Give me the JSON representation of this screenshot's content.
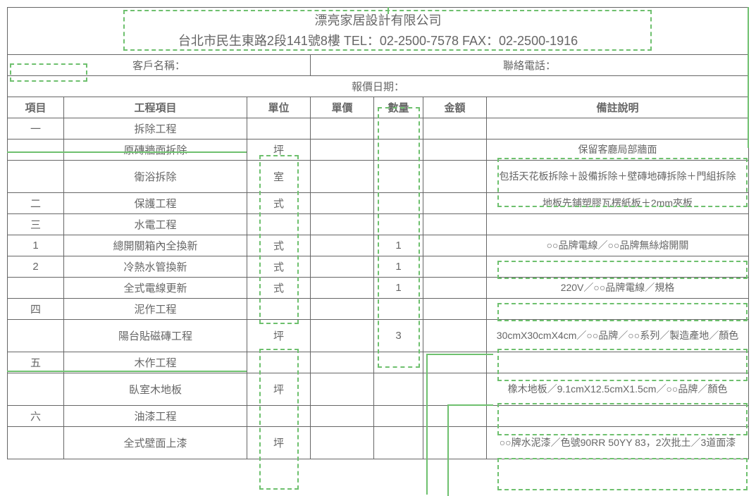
{
  "header": {
    "company": "漂亮家居設計有限公司",
    "address_line": "台北市民生東路2段141號8樓 TEL：02-2500-7578  FAX：02-2500-1916"
  },
  "info": {
    "customer_label": "客戶名稱：",
    "phone_label": "聯絡電話：",
    "quote_date_label": "報價日期："
  },
  "columns": {
    "item": "項目",
    "work": "工程項目",
    "unit": "單位",
    "unit_price": "單價",
    "qty": "數量",
    "amount": "金額",
    "remark": "備註說明"
  },
  "rows": [
    {
      "item": "一",
      "work": "拆除工程",
      "unit": "",
      "price": "",
      "qty": "",
      "amt": "",
      "remark": ""
    },
    {
      "item": "",
      "work": "原磚牆面拆除",
      "unit": "坪",
      "price": "",
      "qty": "",
      "amt": "",
      "remark": "保留客廳局部牆面"
    },
    {
      "item": "",
      "work": "衛浴拆除",
      "unit": "室",
      "price": "",
      "qty": "",
      "amt": "",
      "remark": "包括天花板拆除＋設備拆除＋壁磚地磚拆除＋門組拆除"
    },
    {
      "item": "二",
      "work": "保護工程",
      "unit": "式",
      "price": "",
      "qty": "",
      "amt": "",
      "remark": "地板先鋪塑膠瓦楞紙板＋2mm夾板"
    },
    {
      "item": "三",
      "work": "水電工程",
      "unit": "",
      "price": "",
      "qty": "",
      "amt": "",
      "remark": ""
    },
    {
      "item": "1",
      "work": "總開關箱內全換新",
      "unit": "式",
      "price": "",
      "qty": "1",
      "amt": "",
      "remark": "○○品牌電線／○○品牌無絲熔開關"
    },
    {
      "item": "2",
      "work": "冷熱水管換新",
      "unit": "式",
      "price": "",
      "qty": "1",
      "amt": "",
      "remark": ""
    },
    {
      "item": "",
      "work": "全式電線更新",
      "unit": "式",
      "price": "",
      "qty": "1",
      "amt": "",
      "remark": "220V／○○品牌電線／規格"
    },
    {
      "item": "四",
      "work": "泥作工程",
      "unit": "",
      "price": "",
      "qty": "",
      "amt": "",
      "remark": ""
    },
    {
      "item": "",
      "work": "陽台貼磁磚工程",
      "unit": "坪",
      "price": "",
      "qty": "3",
      "amt": "",
      "remark": "30cmX30cmX4cm／○○品牌／○○系列／製造產地／顏色"
    },
    {
      "item": "五",
      "work": "木作工程",
      "unit": "",
      "price": "",
      "qty": "",
      "amt": "",
      "remark": ""
    },
    {
      "item": "",
      "work": "臥室木地板",
      "unit": "坪",
      "price": "",
      "qty": "",
      "amt": "",
      "remark": "橡木地板／9.1cmX12.5cmX1.5cm／○○品牌／顏色"
    },
    {
      "item": "六",
      "work": "油漆工程",
      "unit": "",
      "price": "",
      "qty": "",
      "amt": "",
      "remark": ""
    },
    {
      "item": "",
      "work": "全式壁面上漆",
      "unit": "坪",
      "price": "",
      "qty": "",
      "amt": "",
      "remark": "○○牌水泥漆／色號90RR 50YY 83，2次批土／3道面漆"
    }
  ],
  "style": {
    "highlight_color": "#6ec06e",
    "border_color": "#666666",
    "text_color": "#666666",
    "background": "#ffffff"
  }
}
